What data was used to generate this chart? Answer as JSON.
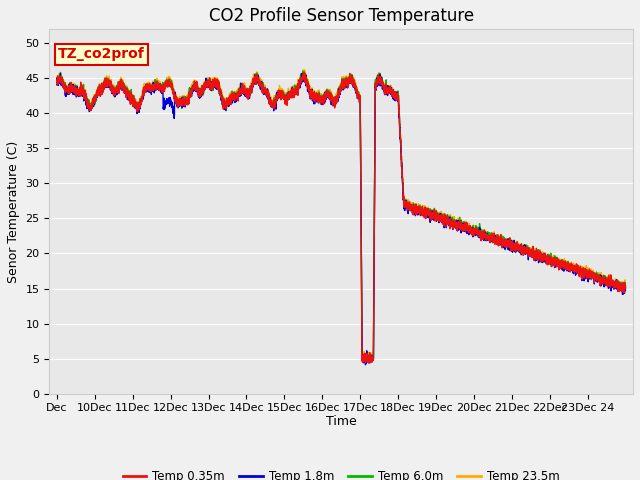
{
  "title": "CO2 Profile Sensor Temperature",
  "ylabel": "Senor Temperature (C)",
  "xlabel": "Time",
  "ylim": [
    0,
    52
  ],
  "yticks": [
    0,
    5,
    10,
    15,
    20,
    25,
    30,
    35,
    40,
    45,
    50
  ],
  "xtick_labels": [
    "Dec",
    "10Dec",
    "11Dec",
    "12Dec",
    "13Dec",
    "14Dec",
    "15Dec",
    "16Dec",
    "17Dec",
    "18Dec",
    "19Dec",
    "20Dec",
    "21Dec",
    "22Dec",
    "23Dec 24"
  ],
  "annotation_text": "TZ_co2prof",
  "annotation_bg": "#ffffcc",
  "annotation_border": "#dd0000",
  "colors": {
    "red": "#ee1111",
    "blue": "#0000dd",
    "green": "#00bb00",
    "orange": "#ffaa00"
  },
  "legend_labels": [
    "Temp 0.35m",
    "Temp 1.8m",
    "Temp 6.0m",
    "Temp 23.5m"
  ],
  "plot_bg": "#e8e8e8",
  "fig_bg": "#f0f0f0",
  "grid_color": "#ffffff",
  "title_fontsize": 12,
  "tick_fontsize": 8,
  "axis_label_fontsize": 9
}
